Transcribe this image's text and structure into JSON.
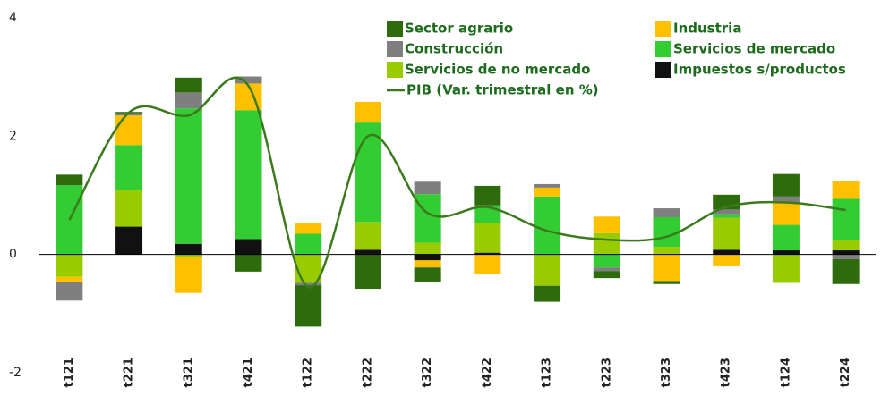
{
  "chart_data": {
    "type": "bar",
    "categories": [
      "t121",
      "t221",
      "t321",
      "t421",
      "t122",
      "t222",
      "t322",
      "t422",
      "t123",
      "t223",
      "t323",
      "t423",
      "t124",
      "t224"
    ],
    "series": [
      {
        "name": "Sector agrario",
        "color": "#2e6b0c",
        "values": [
          0.18,
          0.02,
          0.25,
          -0.29,
          -0.7,
          -0.58,
          -0.25,
          0.33,
          -0.27,
          -0.12,
          -0.05,
          0.25,
          0.38,
          -0.42
        ]
      },
      {
        "name": "Industria",
        "color": "#ffc000",
        "values": [
          -0.08,
          0.5,
          -0.6,
          0.45,
          0.18,
          0.35,
          -0.12,
          -0.33,
          0.15,
          0.28,
          -0.45,
          -0.2,
          0.38,
          0.3
        ]
      },
      {
        "name": "Construcción",
        "color": "#7f7f7f",
        "values": [
          -0.32,
          0.04,
          0.27,
          0.12,
          -0.04,
          0,
          0.21,
          0,
          0.06,
          -0.06,
          0.15,
          0.08,
          0.1,
          -0.08
        ]
      },
      {
        "name": "Servicios de mercado",
        "color": "#33cc33",
        "values": [
          1.17,
          0.76,
          2.29,
          2.18,
          0.35,
          1.68,
          0.82,
          0.3,
          0.98,
          -0.22,
          0.5,
          0.06,
          0.43,
          0.7
        ]
      },
      {
        "name": "Servicios de no mercado",
        "color": "#99cc00",
        "values": [
          -0.38,
          0.62,
          -0.05,
          0,
          -0.48,
          0.47,
          0.2,
          0.5,
          -0.53,
          0.36,
          0.13,
          0.54,
          -0.48,
          0.17
        ]
      },
      {
        "name": "Impuestos s/productos",
        "color": "#111111",
        "values": [
          0,
          0.47,
          0.18,
          0.26,
          0,
          0.08,
          -0.1,
          0.03,
          0,
          0,
          0,
          0.08,
          0.07,
          0.07
        ]
      }
    ],
    "line": {
      "name": "PIB (Var. trimestral en %)",
      "color": "#3b7a1c",
      "values": [
        0.58,
        2.4,
        2.35,
        2.85,
        -0.55,
        2.0,
        0.7,
        0.8,
        0.4,
        0.25,
        0.3,
        0.8,
        0.88,
        0.75
      ]
    },
    "ylim": [
      -2,
      4
    ],
    "yticks": [
      -2,
      0,
      2,
      4
    ]
  }
}
